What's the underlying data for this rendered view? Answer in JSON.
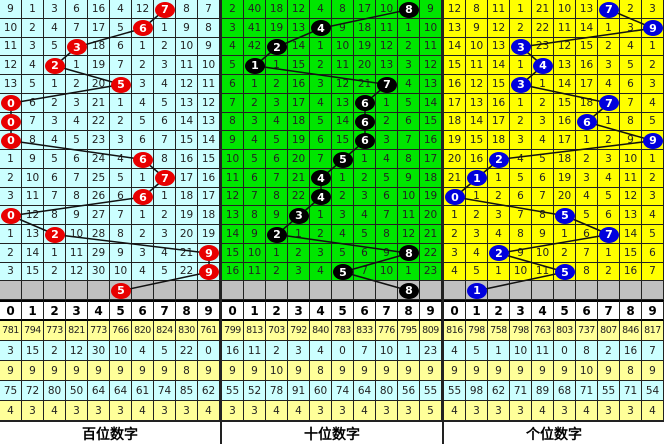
{
  "panels": [
    {
      "title": "百位数字",
      "bg": "#ccffff",
      "ball_color": "#e80000",
      "rows": [
        {
          "values": [
            9,
            1,
            3,
            6,
            16,
            4,
            12,
            7,
            8,
            7
          ],
          "ball": 7
        },
        {
          "values": [
            10,
            2,
            4,
            7,
            17,
            5,
            6,
            1,
            9,
            8
          ],
          "ball": 6
        },
        {
          "values": [
            11,
            3,
            5,
            3,
            18,
            6,
            1,
            2,
            10,
            9
          ],
          "ball": 3
        },
        {
          "values": [
            12,
            4,
            2,
            1,
            19,
            7,
            2,
            3,
            11,
            10
          ],
          "ball": 2
        },
        {
          "values": [
            13,
            5,
            1,
            2,
            20,
            5,
            3,
            4,
            12,
            11
          ],
          "ball": 5
        },
        {
          "values": [
            0,
            6,
            2,
            3,
            21,
            1,
            4,
            5,
            13,
            12
          ],
          "ball": 0
        },
        {
          "values": [
            0,
            7,
            3,
            4,
            22,
            2,
            5,
            6,
            14,
            13
          ],
          "ball": 0
        },
        {
          "values": [
            0,
            8,
            4,
            5,
            23,
            3,
            6,
            7,
            15,
            14
          ],
          "ball": 0
        },
        {
          "values": [
            1,
            9,
            5,
            6,
            24,
            4,
            6,
            8,
            16,
            15
          ],
          "ball": 6
        },
        {
          "values": [
            2,
            10,
            6,
            7,
            25,
            5,
            1,
            7,
            17,
            16
          ],
          "ball": 7
        },
        {
          "values": [
            3,
            11,
            7,
            8,
            26,
            6,
            6,
            1,
            18,
            17
          ],
          "ball": 6
        },
        {
          "values": [
            0,
            12,
            8,
            9,
            27,
            7,
            1,
            2,
            19,
            18
          ],
          "ball": 0
        },
        {
          "values": [
            1,
            13,
            2,
            10,
            28,
            8,
            2,
            3,
            20,
            19
          ],
          "ball": 2
        },
        {
          "values": [
            2,
            14,
            1,
            11,
            29,
            9,
            3,
            4,
            21,
            9
          ],
          "ball": 9
        },
        {
          "values": [
            3,
            15,
            2,
            12,
            30,
            10,
            4,
            5,
            22,
            9
          ],
          "ball": 9
        }
      ],
      "prediction": 5,
      "digits": [
        "0",
        "1",
        "2",
        "3",
        "4",
        "5",
        "6",
        "7",
        "8",
        "9"
      ],
      "stats": [
        [
          781,
          794,
          773,
          821,
          773,
          766,
          820,
          824,
          830,
          761
        ],
        [
          3,
          15,
          2,
          12,
          30,
          10,
          4,
          5,
          22,
          0
        ],
        [
          9,
          9,
          9,
          9,
          9,
          9,
          9,
          9,
          8,
          9
        ],
        [
          75,
          72,
          80,
          50,
          64,
          64,
          61,
          74,
          85,
          62
        ],
        [
          4,
          3,
          4,
          3,
          3,
          3,
          4,
          3,
          3,
          4
        ]
      ]
    },
    {
      "title": "十位数字",
      "bg": "#00e600",
      "ball_color": "#000000",
      "rows": [
        {
          "values": [
            2,
            40,
            18,
            12,
            4,
            8,
            17,
            10,
            8,
            9
          ],
          "ball": 8
        },
        {
          "values": [
            3,
            41,
            19,
            13,
            4,
            9,
            18,
            11,
            1,
            10
          ],
          "ball": 4
        },
        {
          "values": [
            4,
            42,
            2,
            14,
            1,
            10,
            19,
            12,
            2,
            11
          ],
          "ball": 2
        },
        {
          "values": [
            5,
            1,
            1,
            15,
            2,
            11,
            20,
            13,
            3,
            12
          ],
          "ball": 1
        },
        {
          "values": [
            6,
            1,
            2,
            16,
            3,
            12,
            21,
            7,
            4,
            13
          ],
          "ball": 7
        },
        {
          "values": [
            7,
            2,
            3,
            17,
            4,
            13,
            6,
            1,
            5,
            14
          ],
          "ball": 6
        },
        {
          "values": [
            8,
            3,
            4,
            18,
            5,
            14,
            6,
            2,
            6,
            15
          ],
          "ball": 6
        },
        {
          "values": [
            9,
            4,
            5,
            19,
            6,
            15,
            6,
            3,
            7,
            16
          ],
          "ball": 6
        },
        {
          "values": [
            10,
            5,
            6,
            20,
            7,
            5,
            1,
            4,
            8,
            17
          ],
          "ball": 5
        },
        {
          "values": [
            11,
            6,
            7,
            21,
            4,
            1,
            2,
            5,
            9,
            18
          ],
          "ball": 4
        },
        {
          "values": [
            12,
            7,
            8,
            22,
            4,
            2,
            3,
            6,
            10,
            19
          ],
          "ball": 4
        },
        {
          "values": [
            13,
            8,
            9,
            3,
            1,
            3,
            4,
            7,
            11,
            20
          ],
          "ball": 3
        },
        {
          "values": [
            14,
            9,
            2,
            1,
            2,
            4,
            5,
            8,
            12,
            21
          ],
          "ball": 2
        },
        {
          "values": [
            15,
            10,
            1,
            2,
            3,
            5,
            6,
            9,
            8,
            22
          ],
          "ball": 8
        },
        {
          "values": [
            16,
            11,
            2,
            3,
            4,
            5,
            7,
            10,
            1,
            23
          ],
          "ball": 5
        }
      ],
      "prediction": 8,
      "digits": [
        "0",
        "1",
        "2",
        "3",
        "4",
        "5",
        "6",
        "7",
        "8",
        "9"
      ],
      "stats": [
        [
          799,
          813,
          703,
          792,
          840,
          783,
          833,
          776,
          795,
          809
        ],
        [
          16,
          11,
          2,
          3,
          4,
          0,
          7,
          10,
          1,
          23
        ],
        [
          9,
          9,
          10,
          9,
          8,
          9,
          9,
          9,
          9,
          9
        ],
        [
          55,
          52,
          78,
          91,
          60,
          74,
          64,
          80,
          56,
          55
        ],
        [
          3,
          3,
          4,
          4,
          3,
          3,
          4,
          3,
          3,
          5
        ]
      ]
    },
    {
      "title": "个位数字",
      "bg": "#ffff00",
      "ball_color": "#0000dd",
      "rows": [
        {
          "values": [
            12,
            8,
            11,
            1,
            21,
            10,
            13,
            7,
            2,
            3
          ],
          "ball": 7
        },
        {
          "values": [
            13,
            9,
            12,
            2,
            22,
            11,
            14,
            1,
            3,
            9
          ],
          "ball": 9
        },
        {
          "values": [
            14,
            10,
            13,
            3,
            23,
            12,
            15,
            2,
            4,
            1
          ],
          "ball": 3
        },
        {
          "values": [
            15,
            11,
            14,
            1,
            4,
            13,
            16,
            3,
            5,
            2
          ],
          "ball": 4
        },
        {
          "values": [
            16,
            12,
            15,
            3,
            1,
            14,
            17,
            4,
            6,
            3
          ],
          "ball": 3
        },
        {
          "values": [
            17,
            13,
            16,
            1,
            2,
            15,
            18,
            7,
            7,
            4
          ],
          "ball": 7
        },
        {
          "values": [
            18,
            14,
            17,
            2,
            3,
            16,
            6,
            1,
            8,
            5
          ],
          "ball": 6
        },
        {
          "values": [
            19,
            15,
            18,
            3,
            4,
            17,
            1,
            2,
            9,
            9
          ],
          "ball": 9
        },
        {
          "values": [
            20,
            16,
            2,
            4,
            5,
            18,
            2,
            3,
            10,
            1
          ],
          "ball": 2
        },
        {
          "values": [
            21,
            1,
            1,
            5,
            6,
            19,
            3,
            4,
            11,
            2
          ],
          "ball": 1
        },
        {
          "values": [
            0,
            1,
            2,
            6,
            7,
            20,
            4,
            5,
            12,
            3
          ],
          "ball": 0
        },
        {
          "values": [
            1,
            2,
            3,
            7,
            8,
            5,
            5,
            6,
            13,
            4
          ],
          "ball": 5
        },
        {
          "values": [
            2,
            3,
            4,
            8,
            9,
            1,
            6,
            7,
            14,
            5
          ],
          "ball": 7
        },
        {
          "values": [
            3,
            4,
            2,
            9,
            10,
            2,
            7,
            1,
            15,
            6
          ],
          "ball": 2
        },
        {
          "values": [
            4,
            5,
            1,
            10,
            11,
            5,
            8,
            2,
            16,
            7
          ],
          "ball": 5
        }
      ],
      "prediction": 1,
      "digits": [
        "0",
        "1",
        "2",
        "3",
        "4",
        "5",
        "6",
        "7",
        "8",
        "9"
      ],
      "stats": [
        [
          816,
          798,
          758,
          798,
          763,
          803,
          737,
          807,
          846,
          817
        ],
        [
          4,
          5,
          1,
          10,
          11,
          0,
          8,
          2,
          16,
          7
        ],
        [
          9,
          9,
          9,
          9,
          9,
          9,
          10,
          9,
          8,
          9
        ],
        [
          55,
          98,
          62,
          71,
          89,
          68,
          71,
          55,
          71,
          54
        ],
        [
          4,
          3,
          3,
          3,
          4,
          3,
          4,
          3,
          3,
          4
        ]
      ]
    }
  ]
}
